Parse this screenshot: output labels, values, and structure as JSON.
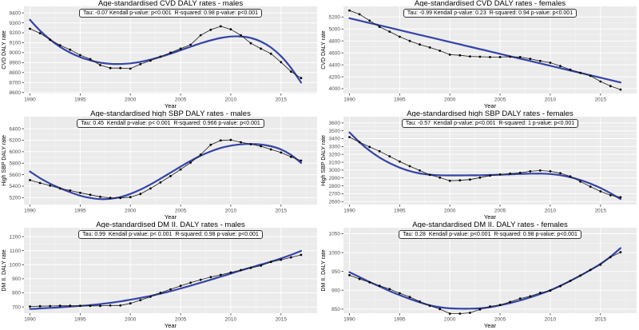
{
  "figure": {
    "xlabel": "Year",
    "background": "#ffffff"
  },
  "colors": {
    "panel_bg": "#ebebeb",
    "grid_major": "#ffffff",
    "grid_minor": "#f5f5f5",
    "point": "#000000",
    "data_line": "#1a1a1a",
    "smooth_line": "#3444a8",
    "tick_text": "#4d4d4d",
    "axis_text": "#000000",
    "tick_mark": "#333333"
  },
  "chart_data": [
    {
      "type": "line",
      "title": "Age-standardised CVD DALY rates - males",
      "stats": "Tau: -0.07 Kendall p-value: p<0.001  R-squared: 0.98 p-value: p<0.001",
      "xlabel": "Year",
      "ylabel": "CVD DALY rate",
      "x": [
        1990,
        1991,
        1992,
        1993,
        1994,
        1995,
        1996,
        1997,
        1998,
        1999,
        2000,
        2001,
        2002,
        2003,
        2004,
        2005,
        2006,
        2007,
        2008,
        2009,
        2010,
        2011,
        2012,
        2013,
        2014,
        2015,
        2016,
        2017
      ],
      "series": [
        {
          "name": "observed",
          "values": [
            9240,
            9195,
            9130,
            9075,
            9030,
            8975,
            8935,
            8875,
            8845,
            8845,
            8840,
            8885,
            8920,
            8960,
            9000,
            9040,
            9080,
            9175,
            9230,
            9265,
            9235,
            9175,
            9095,
            9040,
            8990,
            8905,
            8810,
            8745
          ]
        },
        {
          "name": "smooth-fit",
          "values": [
            9330,
            9222,
            9132,
            9058,
            9000,
            8955,
            8922,
            8900,
            8888,
            8886,
            8893,
            8908,
            8930,
            8958,
            8990,
            9025,
            9060,
            9094,
            9124,
            9148,
            9162,
            9163,
            9148,
            9112,
            9052,
            8965,
            8848,
            8700
          ]
        }
      ],
      "yticks": [
        8600,
        8700,
        8800,
        8900,
        9000,
        9100,
        9200,
        9300,
        9400
      ],
      "ylim": [
        8590,
        9465
      ],
      "xticks": [
        1990,
        1995,
        2000,
        2005,
        2010,
        2015
      ],
      "xlim": [
        1989.4,
        2018.6
      ],
      "grid": true,
      "legend": "none"
    },
    {
      "type": "line",
      "title": "Age-standardised CVD DALY rates - females",
      "stats": "Tau: -0.99 Kendall p-value: 0.23  R-squared: 0.94 p-value: p<0.001",
      "xlabel": "Year",
      "ylabel": "CVD DALY rate",
      "x": [
        1990,
        1991,
        1992,
        1993,
        1994,
        1995,
        1996,
        1997,
        1998,
        1999,
        2000,
        2001,
        2002,
        2003,
        2004,
        2005,
        2006,
        2007,
        2008,
        2009,
        2010,
        2011,
        2012,
        2013,
        2014,
        2015,
        2016,
        2017
      ],
      "series": [
        {
          "name": "observed",
          "values": [
            5310,
            5245,
            5140,
            5035,
            4955,
            4870,
            4800,
            4740,
            4690,
            4635,
            4570,
            4560,
            4540,
            4535,
            4530,
            4530,
            4535,
            4530,
            4500,
            4465,
            4435,
            4380,
            4320,
            4265,
            4215,
            4120,
            4045,
            3985
          ]
        },
        {
          "name": "smooth-fit",
          "values": [
            5180,
            5140,
            5100,
            5061,
            5021,
            4981,
            4941,
            4901,
            4862,
            4822,
            4782,
            4742,
            4702,
            4663,
            4623,
            4583,
            4543,
            4503,
            4464,
            4424,
            4384,
            4344,
            4304,
            4265,
            4225,
            4185,
            4145,
            4105
          ]
        }
      ],
      "yticks": [
        4000,
        4200,
        4400,
        4600,
        4800,
        5000,
        5200
      ],
      "ylim": [
        3920,
        5378
      ],
      "xticks": [
        1990,
        1995,
        2000,
        2005,
        2010,
        2015
      ],
      "xlim": [
        1989.4,
        2018.6
      ],
      "grid": true,
      "legend": "none"
    },
    {
      "type": "line",
      "title": "Age-standardised high SBP DALY rates - males",
      "stats": "Tau: 0.45  Kendall p-value: p< 0.001  R-squared: 0.966 p-value: p<0.001",
      "xlabel": "Year",
      "ylabel": "High SBP DALY rate",
      "x": [
        1990,
        1991,
        1992,
        1993,
        1994,
        1995,
        1996,
        1997,
        1998,
        1999,
        2000,
        2001,
        2002,
        2003,
        2004,
        2005,
        2006,
        2007,
        2008,
        2009,
        2010,
        2011,
        2012,
        2013,
        2014,
        2015,
        2016,
        2017
      ],
      "series": [
        {
          "name": "observed",
          "values": [
            5505,
            5455,
            5410,
            5360,
            5325,
            5285,
            5250,
            5215,
            5195,
            5195,
            5210,
            5265,
            5360,
            5465,
            5575,
            5690,
            5810,
            5950,
            6120,
            6195,
            6205,
            6165,
            6130,
            6095,
            6040,
            5985,
            5910,
            5845
          ]
        },
        {
          "name": "smooth-fit",
          "values": [
            5655,
            5540,
            5445,
            5365,
            5295,
            5235,
            5195,
            5175,
            5180,
            5210,
            5265,
            5340,
            5430,
            5530,
            5635,
            5740,
            5840,
            5930,
            6005,
            6065,
            6105,
            6128,
            6135,
            6125,
            6095,
            6040,
            5945,
            5805
          ]
        }
      ],
      "yticks": [
        5200,
        5400,
        5600,
        5800,
        6000,
        6200,
        6400
      ],
      "ylim": [
        5080,
        6610
      ],
      "xticks": [
        1990,
        1995,
        2000,
        2005,
        2010,
        2015
      ],
      "xlim": [
        1989.4,
        2018.6
      ],
      "grid": true,
      "legend": "none"
    },
    {
      "type": "line",
      "title": "Age-standardised high SBP DALY rates - females",
      "stats": "Tau: -0.57  Kendall p-value: p<0.001  R-squared: 1 p-value: p<0.001",
      "xlabel": "Year",
      "ylabel": "High SBP DALY rate",
      "x": [
        1990,
        1991,
        1992,
        1993,
        1994,
        1995,
        1996,
        1997,
        1998,
        1999,
        2000,
        2001,
        2002,
        2003,
        2004,
        2005,
        2006,
        2007,
        2008,
        2009,
        2010,
        2011,
        2012,
        2013,
        2014,
        2015,
        2016,
        2017
      ],
      "series": [
        {
          "name": "observed",
          "values": [
            3420,
            3355,
            3295,
            3240,
            3175,
            3110,
            3050,
            2995,
            2940,
            2905,
            2865,
            2870,
            2880,
            2905,
            2930,
            2945,
            2955,
            2965,
            2985,
            2995,
            2985,
            2960,
            2920,
            2855,
            2790,
            2730,
            2680,
            2655
          ]
        },
        {
          "name": "smooth-fit",
          "values": [
            3480,
            3355,
            3248,
            3160,
            3090,
            3032,
            2988,
            2958,
            2942,
            2935,
            2933,
            2933,
            2934,
            2935,
            2938,
            2941,
            2946,
            2951,
            2955,
            2956,
            2950,
            2935,
            2910,
            2874,
            2828,
            2772,
            2706,
            2632
          ]
        }
      ],
      "yticks": [
        2600,
        2700,
        2800,
        2900,
        3000,
        3100,
        3200,
        3300,
        3400,
        3500,
        3600
      ],
      "ylim": [
        2562,
        3680
      ],
      "xticks": [
        1990,
        1995,
        2000,
        2005,
        2010,
        2015
      ],
      "xlim": [
        1989.4,
        2018.6
      ],
      "grid": true,
      "legend": "none"
    },
    {
      "type": "line",
      "title": "Age-standardised DM II. DALY rates - males",
      "stats": "Tau: 0.99  Kendall p-value: p< 0.001  R-squared: 0.98 p-value: p<0.001",
      "xlabel": "Year",
      "ylabel": "DM II. DALY rate",
      "x": [
        1990,
        1991,
        1992,
        1993,
        1994,
        1995,
        1996,
        1997,
        1998,
        1999,
        2000,
        2001,
        2002,
        2003,
        2004,
        2005,
        2006,
        2007,
        2008,
        2009,
        2010,
        2011,
        2012,
        2013,
        2014,
        2015,
        2016,
        2017
      ],
      "series": [
        {
          "name": "observed",
          "values": [
            703,
            705,
            706,
            708,
            708,
            707,
            707,
            707,
            710,
            710,
            725,
            748,
            772,
            800,
            825,
            850,
            872,
            893,
            912,
            928,
            945,
            962,
            977,
            993,
            1020,
            1035,
            1052,
            1070
          ]
        },
        {
          "name": "smooth-fit",
          "values": [
            685,
            689,
            693,
            697,
            702,
            707,
            713,
            720,
            729,
            739,
            751,
            764,
            778,
            794,
            812,
            831,
            851,
            872,
            893,
            915,
            937,
            959,
            980,
            1001,
            1022,
            1045,
            1070,
            1098
          ]
        }
      ],
      "yticks": [
        700,
        800,
        900,
        1000,
        1100,
        1200
      ],
      "ylim": [
        655,
        1263
      ],
      "xticks": [
        1990,
        1995,
        2000,
        2005,
        2010,
        2015
      ],
      "xlim": [
        1989.4,
        2018.6
      ],
      "grid": true,
      "legend": "none"
    },
    {
      "type": "line",
      "title": "Age-standardised DM II. DALY rates - females",
      "stats": "Tau: 0.28  Kendall p-value: p<0.001  R-squared: 0.98 p-value: p<0.001",
      "xlabel": "Year",
      "ylabel": "DM II. DALY rate",
      "x": [
        1990,
        1991,
        1992,
        1993,
        1994,
        1995,
        1996,
        1997,
        1998,
        1999,
        2000,
        2001,
        2002,
        2003,
        2004,
        2005,
        2006,
        2007,
        2008,
        2009,
        2010,
        2011,
        2012,
        2013,
        2014,
        2015,
        2016,
        2017
      ],
      "series": [
        {
          "name": "observed",
          "values": [
            940,
            930,
            921,
            912,
            903,
            892,
            882,
            870,
            859,
            850,
            838,
            838,
            840,
            849,
            857,
            861,
            869,
            878,
            884,
            893,
            899,
            911,
            925,
            939,
            954,
            968,
            988,
            1001
          ]
        },
        {
          "name": "smooth-fit",
          "values": [
            948,
            935,
            922,
            910,
            898,
            887,
            877,
            868,
            860,
            855,
            852,
            851,
            851,
            852,
            855,
            860,
            866,
            873,
            881,
            890,
            900,
            912,
            925,
            939,
            954,
            970,
            989,
            1012
          ]
        }
      ],
      "yticks": [
        850,
        900,
        950,
        1000,
        1050
      ],
      "ylim": [
        839,
        1066
      ],
      "xticks": [
        1990,
        1995,
        2000,
        2005,
        2010,
        2015
      ],
      "xlim": [
        1989.4,
        2018.6
      ],
      "grid": true,
      "legend": "none"
    }
  ]
}
